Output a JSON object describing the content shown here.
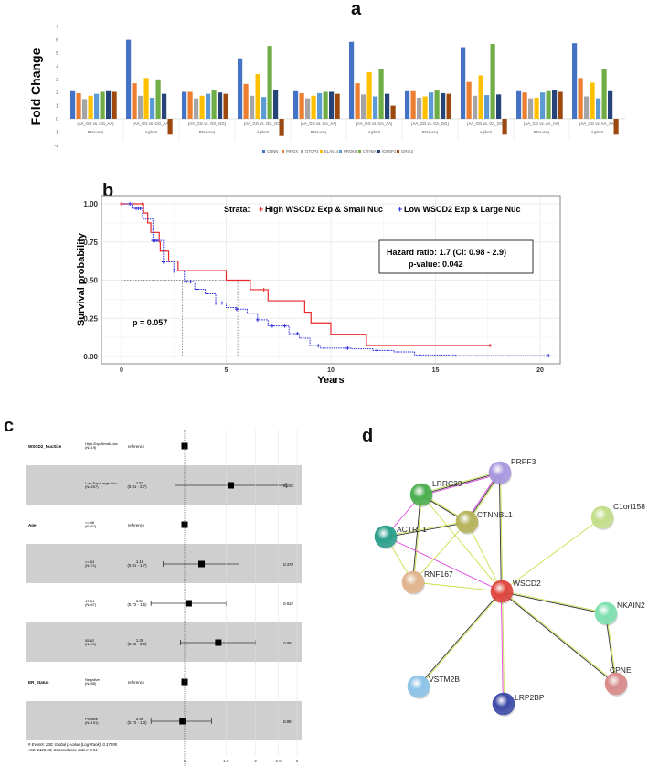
{
  "panels": {
    "a": "a",
    "b": "b",
    "c": "c",
    "d": "d"
  },
  "chart_data": [
    {
      "type": "bar",
      "panel": "a",
      "ylabel": "Fold Change",
      "ylim": [
        -2,
        7
      ],
      "yticks": [
        -2,
        -1,
        0,
        1,
        2,
        3,
        4,
        5,
        6,
        7
      ],
      "legend_position": "bottom",
      "categories": [
        {
          "comparison": "[AA_GG vs. GG_AA]",
          "platform": "RNA-seq"
        },
        {
          "comparison": "[AA_GG vs. GG_AA]",
          "platform": "Agilent"
        },
        {
          "comparison": "[AA_GG vs. GG_GG]",
          "platform": "RNA-seq"
        },
        {
          "comparison": "[AA_GG vs. GG_GG]",
          "platform": "Agilent"
        },
        {
          "comparison": "[AA_GG vs. GA_AA]",
          "platform": "RNA-seq"
        },
        {
          "comparison": "[AA_GG vs. GA_AA]",
          "platform": "Agilent"
        },
        {
          "comparison": "[AA_GG vs. GA_GG]",
          "platform": "RNA-seq"
        },
        {
          "comparison": "[AA_GG vs. GA_GG]",
          "platform": "Agilent"
        },
        {
          "comparison": "[AA_GG vs. AA_AA]",
          "platform": "RNA-seq"
        },
        {
          "comparison": "[AA_GG vs. AA_AA]",
          "platform": "Agilent"
        }
      ],
      "series": [
        {
          "name": "CRNN",
          "color": "#4472c4",
          "values": [
            2.1,
            6.0,
            2.05,
            4.6,
            2.1,
            5.85,
            2.1,
            5.45,
            2.1,
            5.75
          ]
        },
        {
          "name": "PIPOX",
          "color": "#ed7d31",
          "values": [
            1.95,
            2.7,
            2.05,
            2.65,
            1.95,
            2.7,
            2.1,
            2.8,
            2.0,
            3.1
          ]
        },
        {
          "name": "OTOP3",
          "color": "#a5a5a5",
          "values": [
            1.5,
            1.75,
            1.55,
            1.75,
            1.55,
            1.85,
            1.6,
            1.75,
            1.55,
            1.7
          ]
        },
        {
          "name": "ELAVL4",
          "color": "#ffc000",
          "values": [
            1.75,
            3.1,
            1.75,
            3.4,
            1.75,
            3.55,
            1.7,
            3.3,
            1.6,
            2.75
          ]
        },
        {
          "name": "PROKR1",
          "color": "#5b9bd5",
          "values": [
            1.9,
            1.6,
            1.9,
            1.65,
            1.95,
            1.7,
            2.0,
            1.8,
            2.0,
            1.55
          ]
        },
        {
          "name": "CRYBA2",
          "color": "#70ad47",
          "values": [
            2.05,
            3.0,
            2.15,
            5.55,
            2.05,
            3.8,
            2.15,
            5.7,
            2.1,
            3.8
          ]
        },
        {
          "name": "IGFBP1",
          "color": "#264478",
          "values": [
            2.1,
            1.9,
            2.0,
            2.2,
            2.05,
            1.9,
            1.95,
            1.85,
            2.15,
            2.1
          ]
        },
        {
          "name": "GRIA3",
          "color": "#9e480e",
          "values": [
            2.05,
            -1.2,
            1.9,
            -1.3,
            1.9,
            1.0,
            1.9,
            -1.2,
            2.05,
            -1.2
          ]
        }
      ]
    },
    {
      "type": "line",
      "panel": "b",
      "subtype": "kaplan-meier",
      "xlabel": "Years",
      "ylabel": "Survival probability",
      "xlim": [
        0,
        20.5
      ],
      "ylim": [
        0,
        1
      ],
      "xticks": [
        0,
        5,
        10,
        15,
        20
      ],
      "yticks": [
        "0.00",
        "0.25",
        "0.50",
        "0.75",
        "1.00"
      ],
      "legend_title": "Strata:",
      "legend_position": "top-right",
      "hazard_ratio_text": "Hazard ratio: 1.7 (CI: 0.98 - 2.9)",
      "hr_pvalue_text": "p-value: 0.042",
      "pvalue_text": "p = 0.057",
      "median_survival": [
        2.9,
        5.55
      ],
      "series": [
        {
          "name": "High WSCD2 Exp & Small Nuc",
          "color": "#e8282b",
          "style": "solid",
          "times": [
            0,
            1.05,
            1.25,
            1.4,
            1.8,
            1.85,
            2.25,
            2.7,
            5.0,
            6.15,
            7.0,
            8.75,
            9.05,
            10.0,
            11.7
          ],
          "survival": [
            1,
            0.94,
            0.875,
            0.8125,
            0.75,
            0.69,
            0.625,
            0.5625,
            0.5,
            0.4375,
            0.365,
            0.29,
            0.22,
            0.145,
            0.072
          ],
          "end_time": 17.6,
          "censored": [
            0,
            1.0,
            6.8,
            17.6
          ]
        },
        {
          "name": "Low WSCD2 Exp & Large Nuc",
          "color": "#2a2ae0",
          "style": "dotted",
          "times": [
            0,
            0.5,
            1,
            1.5,
            2,
            2.5,
            3,
            3.5,
            4,
            4.5,
            5,
            5.5,
            6,
            6.5,
            7,
            8,
            8.5,
            9,
            9.5,
            11,
            12,
            13,
            14,
            16
          ],
          "survival": [
            1,
            0.97,
            0.9,
            0.76,
            0.62,
            0.56,
            0.49,
            0.44,
            0.41,
            0.35,
            0.32,
            0.31,
            0.28,
            0.24,
            0.2,
            0.15,
            0.12,
            0.07,
            0.055,
            0.05,
            0.04,
            0.03,
            0.01,
            0.005
          ],
          "end_time": 20.4,
          "censored": [
            0.4,
            0.7,
            0.8,
            0.9,
            1.5,
            1.6,
            1.7,
            2.0,
            2.5,
            3.1,
            3.3,
            3.6,
            4.5,
            4.8,
            5.5,
            6.5,
            7.2,
            7.8,
            8.4,
            9.4,
            10.8,
            12.2,
            20.4
          ]
        }
      ]
    },
    {
      "type": "forest",
      "panel": "c",
      "xscale": "log",
      "xticks": [
        1,
        1.5,
        2,
        2.5,
        3
      ],
      "footer": [
        "# Events: 230; Global p-value (Log-Rank): 0.17995",
        "AIC: 2126.58; Concordance Index: 0.54"
      ],
      "rows": [
        {
          "variable": "WSCD2_NucSize",
          "level": "High-Exp/Small-Nuc",
          "n": "(N=19)",
          "hr": 1,
          "hr_text": "reference",
          "ci_text": "",
          "p": ""
        },
        {
          "variable": "",
          "level": "Low-Exp/Large-Nuc",
          "n": "(N=257)",
          "hr": 1.57,
          "lo": 0.91,
          "hi": 2.7,
          "hr_text": "1.57",
          "ci_text": "(0.91 - 2.7)",
          "p": "0.105"
        },
        {
          "variable": "Age",
          "level": "<= 46",
          "n": "(N=67)",
          "hr": 1,
          "hr_text": "reference",
          "ci_text": "",
          "p": ""
        },
        {
          "variable": "",
          "level": ">= 63",
          "n": "(N=71)",
          "hr": 1.18,
          "lo": 0.81,
          "hi": 1.7,
          "hr_text": "1.18",
          "ci_text": "(0.81 - 1.7)",
          "p": "0.378"
        },
        {
          "variable": "",
          "level": "47-54",
          "n": "(N=67)",
          "hr": 1.04,
          "lo": 0.72,
          "hi": 1.5,
          "hr_text": "1.04",
          "ci_text": "(0.72 - 1.5)",
          "p": "0.832"
        },
        {
          "variable": "",
          "level": "55-62",
          "n": "(N=70)",
          "hr": 1.39,
          "lo": 0.96,
          "hi": 2.0,
          "hr_text": "1.39",
          "ci_text": "(0.96 - 2.0)",
          "p": "0.08"
        },
        {
          "variable": "ER_Status",
          "level": "Negative",
          "n": "(N=85)",
          "hr": 1,
          "hr_text": "reference",
          "ci_text": "",
          "p": ""
        },
        {
          "variable": "",
          "level": "Positive",
          "n": "(N=191)",
          "hr": 0.98,
          "lo": 0.72,
          "hi": 1.3,
          "hr_text": "0.98",
          "ci_text": "(0.72 - 1.3)",
          "p": "0.88"
        }
      ]
    },
    {
      "type": "network",
      "panel": "d",
      "nodes": [
        {
          "id": "PRPF3",
          "color": "#a898e0"
        },
        {
          "id": "LRRC39",
          "color": "#4caf50"
        },
        {
          "id": "CTNNBL1",
          "color": "#b5b35a"
        },
        {
          "id": "ACTRT1",
          "color": "#2aa08c"
        },
        {
          "id": "C1orf158",
          "color": "#c3de8a"
        },
        {
          "id": "RNF167",
          "color": "#e0b48c"
        },
        {
          "id": "WSCD2",
          "color": "#e0453f"
        },
        {
          "id": "NKAIN2",
          "color": "#7ee0b0"
        },
        {
          "id": "CPNE",
          "color": "#d98a8a"
        },
        {
          "id": "VSTM2B",
          "color": "#8cc4e8"
        },
        {
          "id": "LRP2BP",
          "color": "#3d4aa8"
        }
      ],
      "edges": [
        [
          "LRRC39",
          "PRPF3",
          "ykm"
        ],
        [
          "PRPF3",
          "CTNNBL1",
          "ykm"
        ],
        [
          "PRPF3",
          "WSCD2",
          "yk"
        ],
        [
          "LRRC39",
          "CTNNBL1",
          "yk"
        ],
        [
          "LRRC39",
          "ACTRT1",
          "m"
        ],
        [
          "LRRC39",
          "RNF167",
          "yk"
        ],
        [
          "LRRC39",
          "WSCD2",
          "y"
        ],
        [
          "ACTRT1",
          "CTNNBL1",
          "yk"
        ],
        [
          "ACTRT1",
          "RNF167",
          "y"
        ],
        [
          "ACTRT1",
          "WSCD2",
          "m"
        ],
        [
          "CTNNBL1",
          "RNF167",
          "y"
        ],
        [
          "CTNNBL1",
          "WSCD2",
          "y"
        ],
        [
          "RNF167",
          "WSCD2",
          "y"
        ],
        [
          "C1orf158",
          "WSCD2",
          "y"
        ],
        [
          "WSCD2",
          "NKAIN2",
          "yk"
        ],
        [
          "WSCD2",
          "CPNE",
          "yk"
        ],
        [
          "NKAIN2",
          "CPNE",
          "yk"
        ],
        [
          "WSCD2",
          "VSTM2B",
          "yk"
        ],
        [
          "WSCD2",
          "LRP2BP",
          "ym"
        ]
      ]
    }
  ]
}
